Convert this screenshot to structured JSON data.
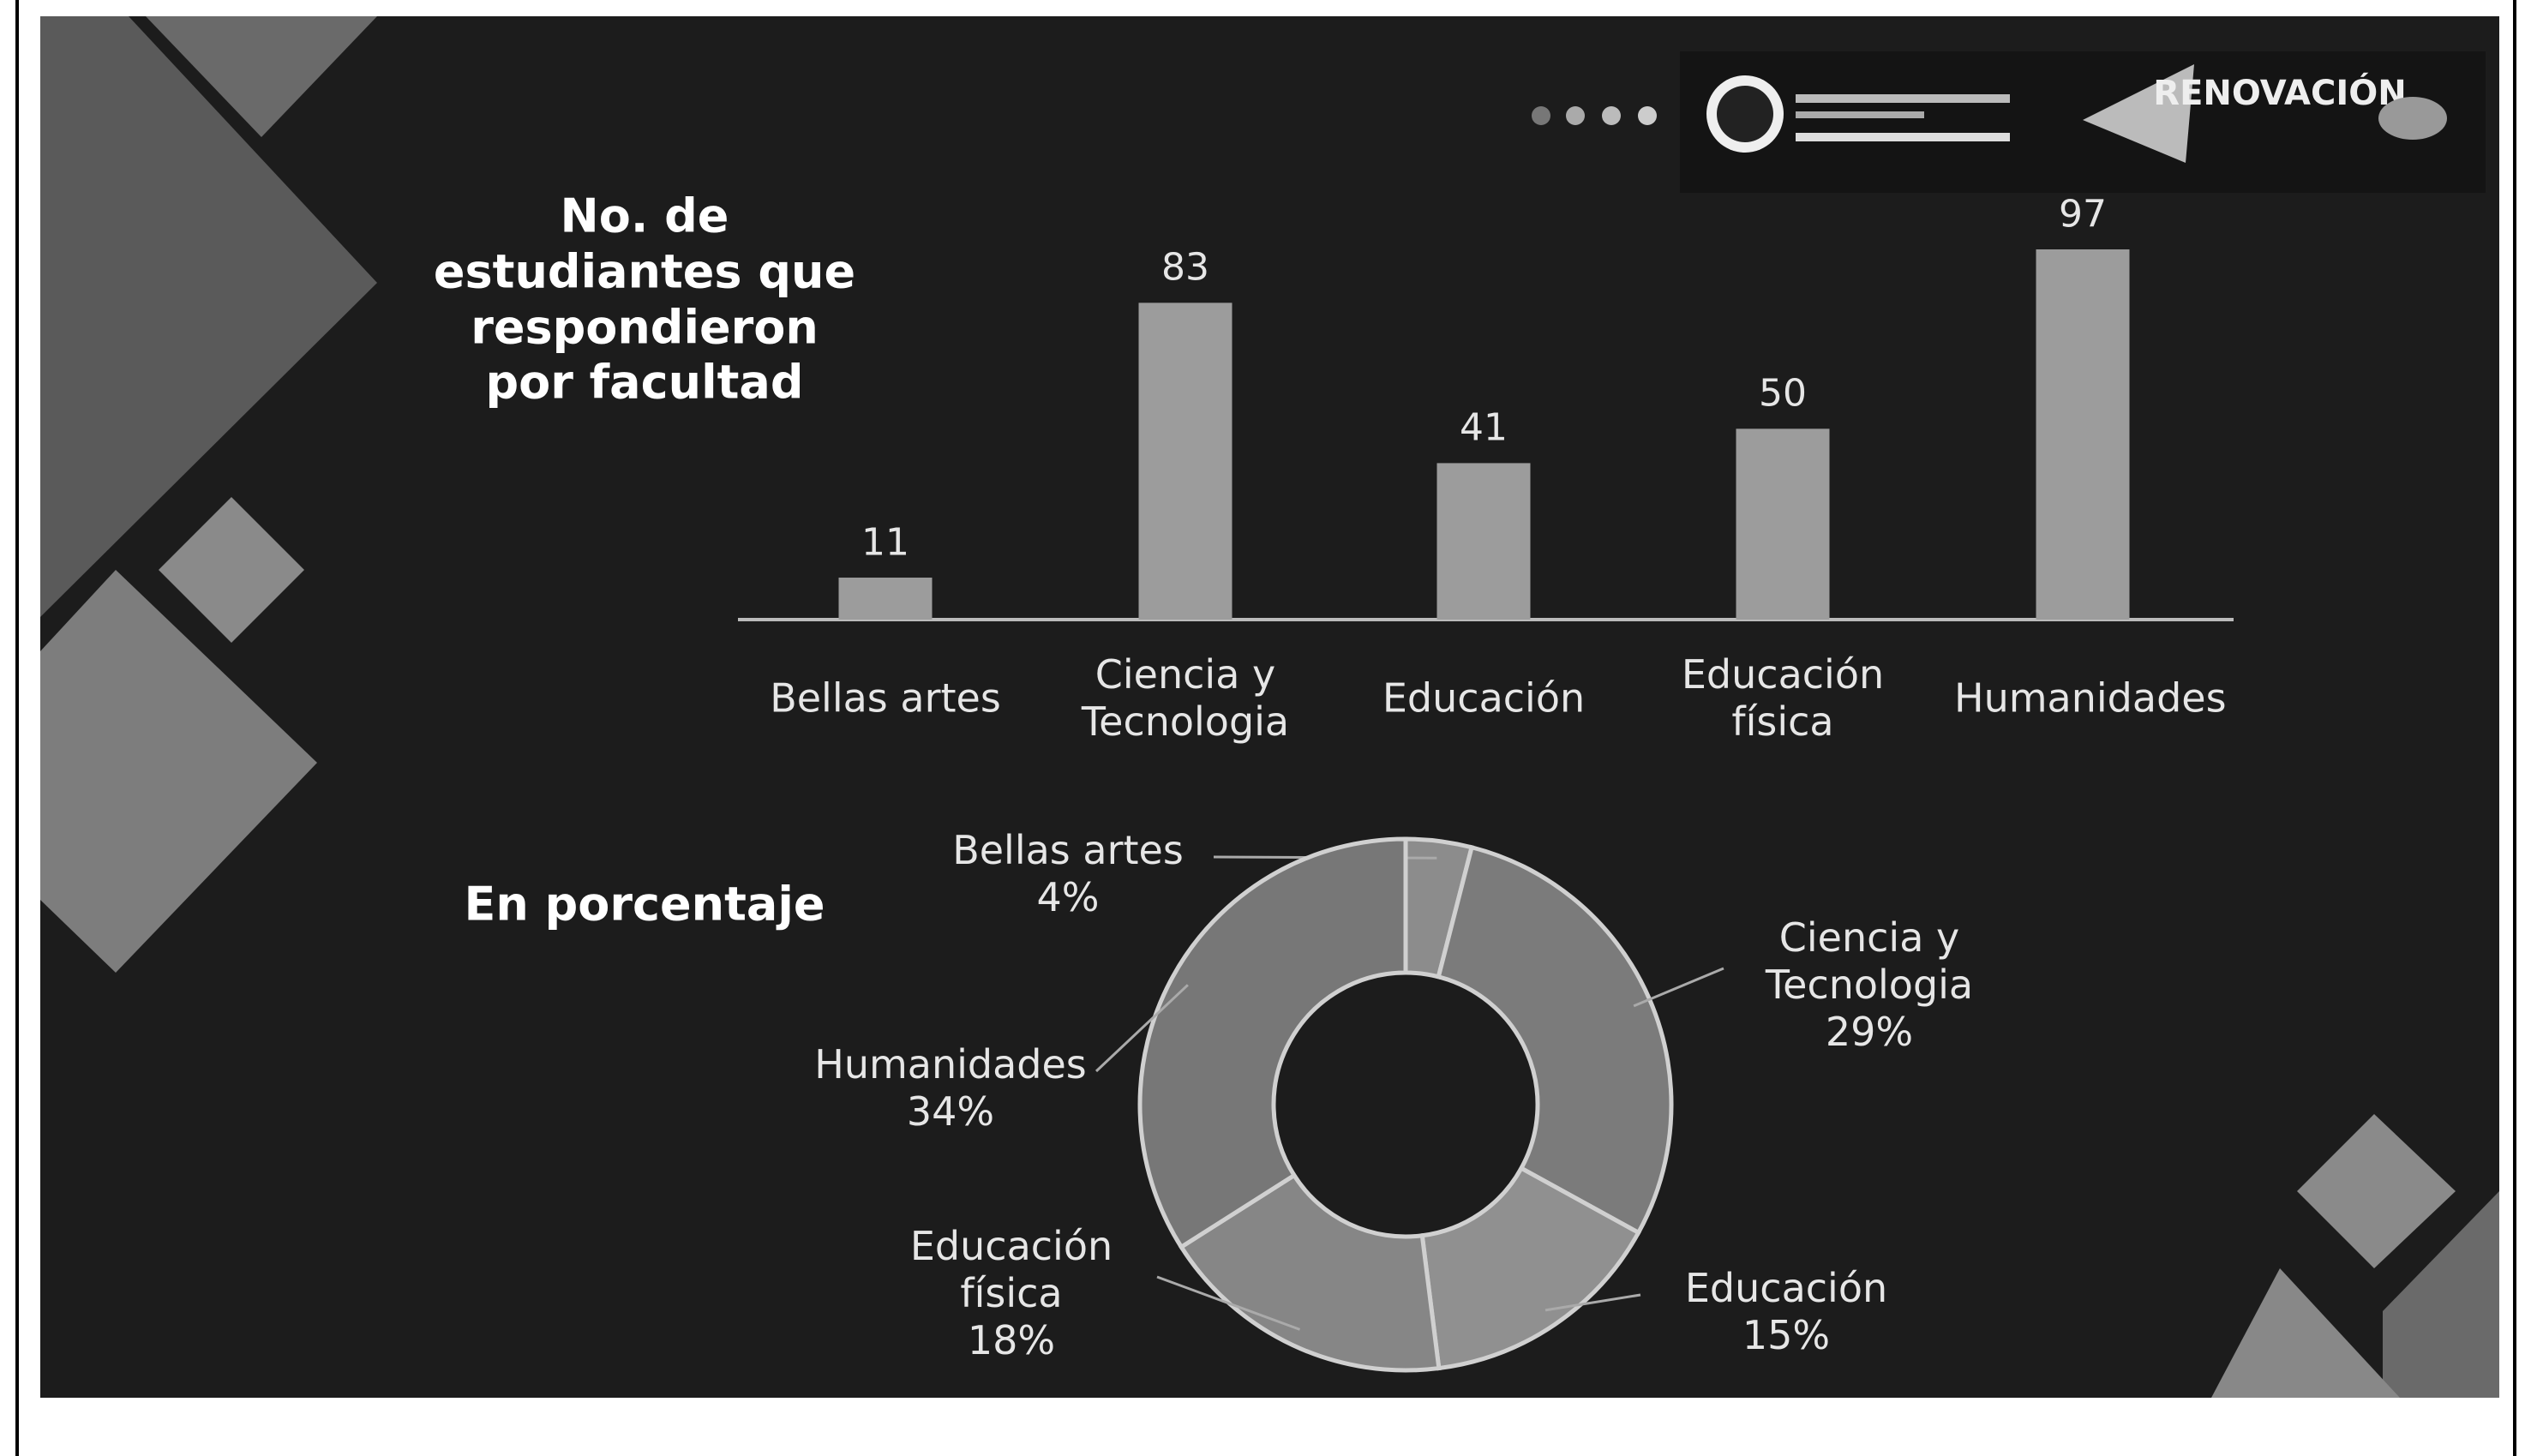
{
  "header": {
    "logo_text": "RENOVACIÓN"
  },
  "chart_data": [
    {
      "type": "bar",
      "title": "No. de estudiantes que respondieron por facultad",
      "categories": [
        "Bellas artes",
        "Ciencia y Tecnologia",
        "Educación",
        "Educación física",
        "Humanidades"
      ],
      "values": [
        11,
        83,
        41,
        50,
        97
      ],
      "color": "#9c9c9c"
    },
    {
      "type": "donut",
      "title": "En porcentaje",
      "categories": [
        "Bellas artes",
        "Ciencia y Tecnologia",
        "Educación",
        "Educación física",
        "Humanidades"
      ],
      "values": [
        4,
        29,
        15,
        18,
        34
      ],
      "value_labels": [
        "4%",
        "29%",
        "15%",
        "18%",
        "34%"
      ],
      "colors": [
        "#8c8c8c",
        "#7b7b7b",
        "#909090",
        "#868686",
        "#777777"
      ]
    }
  ]
}
